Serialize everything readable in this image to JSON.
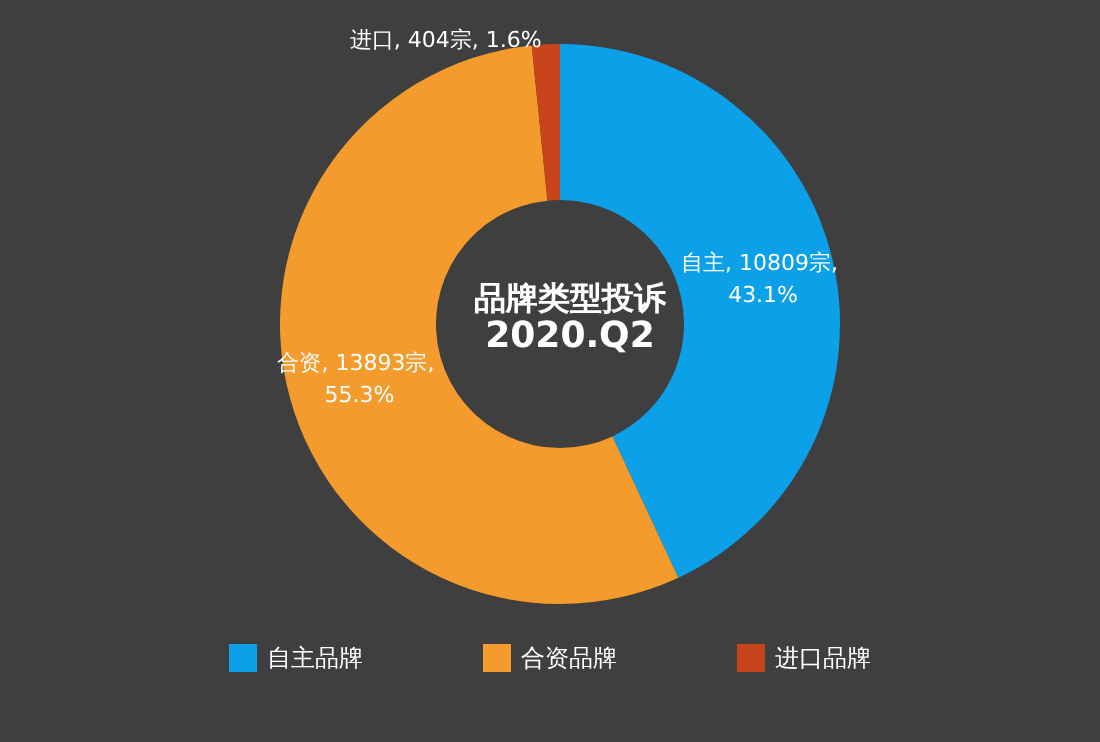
{
  "chart_data": {
    "type": "donut",
    "title": "品牌类型投诉",
    "subtitle": "2020.Q2",
    "categories": [
      "自主品牌",
      "合资品牌",
      "进口品牌"
    ],
    "values": [
      10809,
      13893,
      404
    ],
    "colors": [
      "#0ba0e8",
      "#f39b2c",
      "#c8441a"
    ],
    "value_labels": [
      "自主, 10809宗, 43.1%",
      "合资, 13893宗, 55.3%",
      "进口, 404宗, 1.6%"
    ],
    "legend": "bottom"
  }
}
